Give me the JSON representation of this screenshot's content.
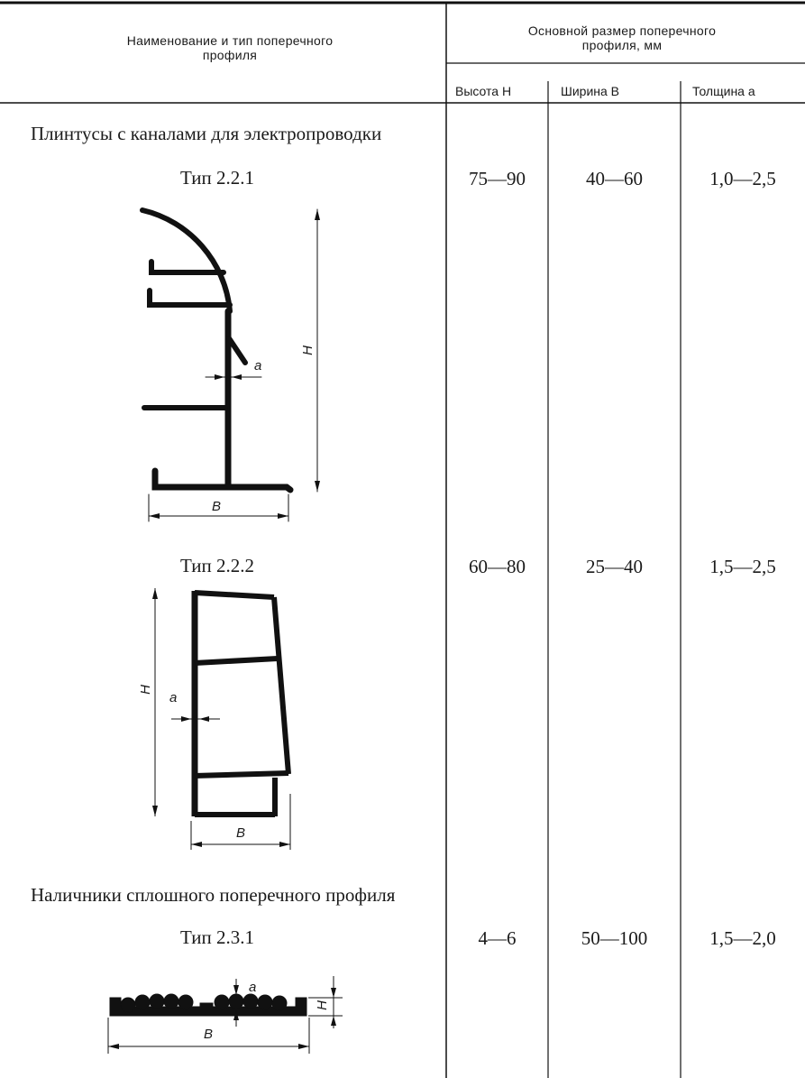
{
  "table": {
    "header": {
      "name_col": "Наименование и тип поперечного профиля",
      "size_group": "Основной размер поперечного профиля, мм",
      "height_col": "Высота H",
      "width_col": "Ширина B",
      "thickness_col": "Толщина a"
    },
    "sections": [
      {
        "title": "Плинтусы с каналами для электропроводки",
        "types": [
          {
            "type": "Тип 2.2.1",
            "height": "75—90",
            "width": "40—60",
            "thickness": "1,0—2,5"
          },
          {
            "type": "Тип 2.2.2",
            "height": "60—80",
            "width": "25—40",
            "thickness": "1,5—2,5"
          }
        ]
      },
      {
        "title": "Наличники сплошного поперечного профиля",
        "types": [
          {
            "type": "Тип 2.3.1",
            "height": "4—6",
            "width": "50—100",
            "thickness": "1,5—2,0"
          }
        ]
      }
    ]
  },
  "drawing_labels": {
    "height": "H",
    "width": "B",
    "thickness": "a"
  }
}
